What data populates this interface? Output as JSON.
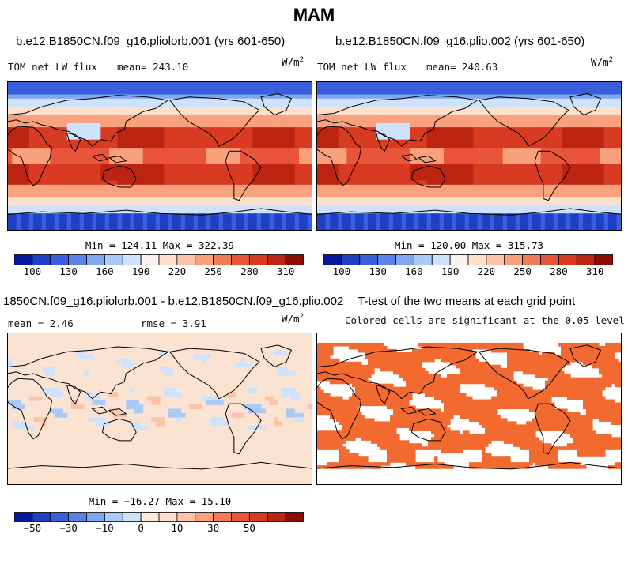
{
  "figure_title": "MAM",
  "panels": [
    {
      "title": "b.e12.B1850CN.f09_g16.pliolorb.001 (yrs 601-650)",
      "left_label": "TOM net LW flux",
      "stat_label": "mean= 243.10",
      "units": "W/m",
      "units_sup": "2",
      "minmax": "Min = 124.11 Max = 322.39"
    },
    {
      "title": "b.e12.B1850CN.f09_g16.plio.002 (yrs 601-650)",
      "left_label": "TOM net LW flux",
      "stat_label": "mean= 240.63",
      "units": "W/m",
      "units_sup": "2",
      "minmax": "Min = 120.00 Max = 315.73"
    },
    {
      "title": "1850CN.f09_g16.pliolorb.001 - b.e12.B1850CN.f09_g16.plio.002",
      "left_label": "mean =   2.46",
      "stat_label": "rmse =   3.91",
      "units": "W/m",
      "units_sup": "2",
      "minmax": "Min = −16.27 Max =  15.10"
    },
    {
      "title": "T-test of the two means at each grid point",
      "subtitle": "Colored cells are significant at the 0.05 level"
    }
  ],
  "colorbars": {
    "abs_labels": [
      "100",
      "130",
      "160",
      "190",
      "220",
      "250",
      "280",
      "310"
    ],
    "diff_labels": [
      "−50",
      "−30",
      "−10",
      "0",
      "10",
      "30",
      "50"
    ],
    "abs_colors": [
      "#08189c",
      "#1f3fc6",
      "#3a5fdb",
      "#5a82e8",
      "#80a6f0",
      "#a9c9f6",
      "#cfe2fb",
      "#f9f1ee",
      "#fde0cc",
      "#fcc3a6",
      "#f9a07c",
      "#f27b58",
      "#e8553a",
      "#d83a22",
      "#bb2512",
      "#8b0d06"
    ],
    "diff_colors": [
      "#08189c",
      "#1f3fc6",
      "#3a5fdb",
      "#5a82e8",
      "#80a6f0",
      "#a9c9f6",
      "#cfe2fb",
      "#fde9d9",
      "#fde0cc",
      "#fcc3a6",
      "#f9a07c",
      "#f27b58",
      "#e8553a",
      "#d83a22",
      "#bb2512",
      "#8b0d06"
    ]
  },
  "colors": {
    "significant": "#f26a30",
    "diff_background": "#fbe3d2"
  }
}
